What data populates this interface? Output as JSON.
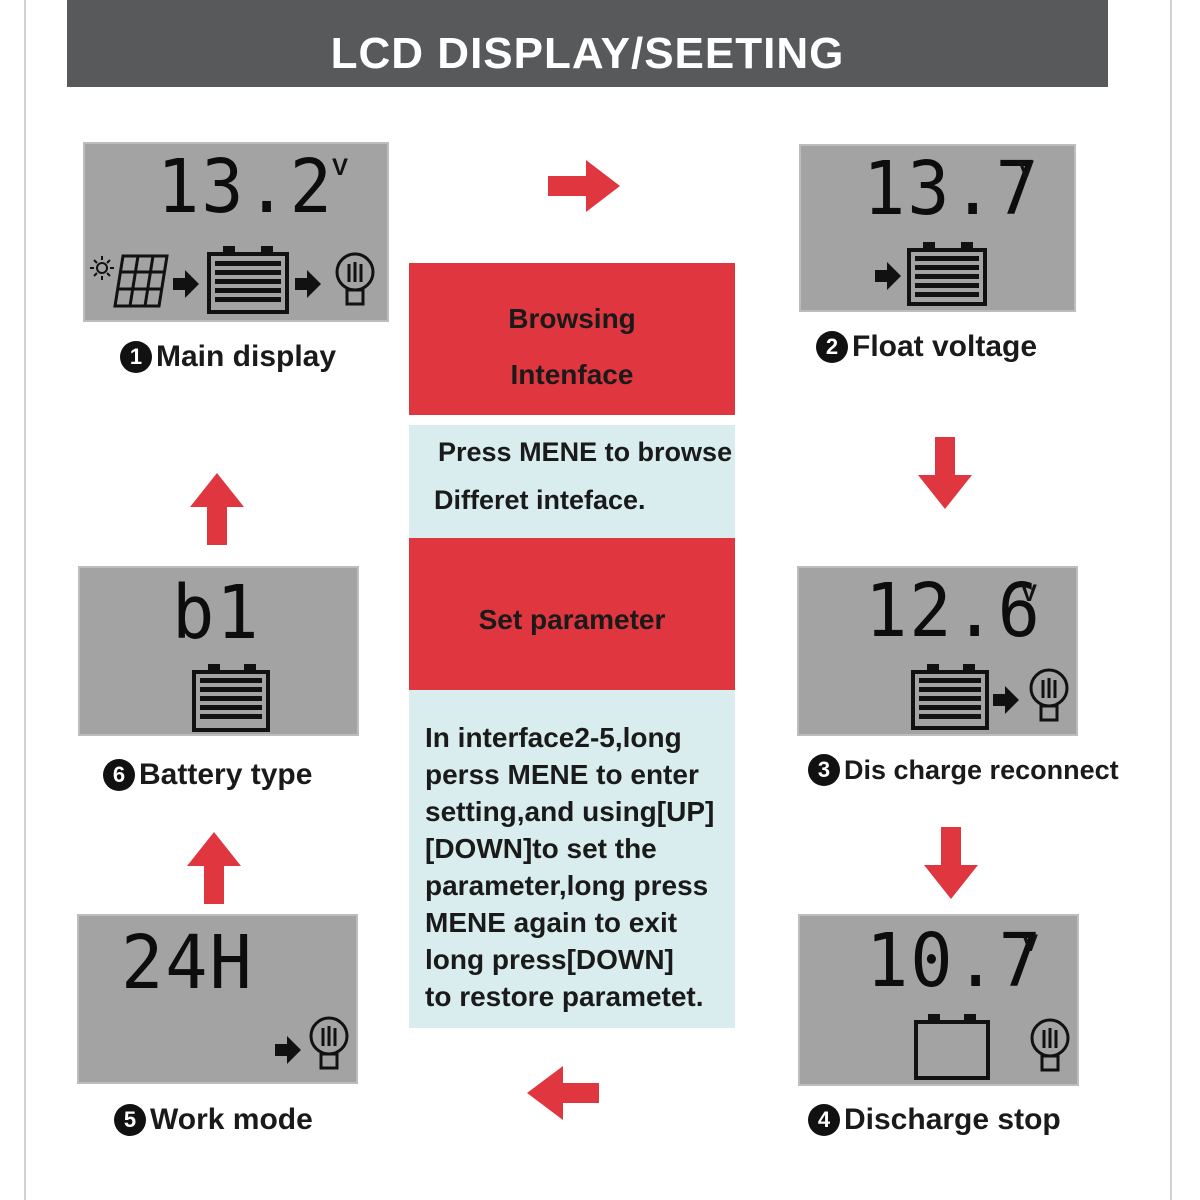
{
  "header": {
    "title": "LCD DISPLAY/SEETING"
  },
  "panels": {
    "main": {
      "reading": "13.2",
      "unit": "V",
      "label": "Main display",
      "step": "1"
    },
    "float": {
      "reading": "13.7",
      "unit": "V",
      "label": "Float voltage",
      "step": "2"
    },
    "reconnect": {
      "reading": "12.6",
      "unit": "V",
      "label": "Dis charge reconnect",
      "step": "3"
    },
    "stop": {
      "reading": "10.7",
      "unit": "V",
      "label": "Discharge stop",
      "step": "4"
    },
    "work": {
      "reading": "24H",
      "label": "Work mode",
      "step": "5"
    },
    "battery": {
      "reading": "b1",
      "label": "Battery type",
      "step": "6"
    }
  },
  "center": {
    "browse_title_1": "Browsing",
    "browse_title_2": "Intenface",
    "browse_desc_1": "Press MENE to browse",
    "browse_desc_2": "Differet inteface.",
    "set_title": "Set parameter",
    "set_desc": [
      "In interface2-5,long",
      "perss MENE to enter",
      "setting,and using[UP]",
      "[DOWN]to set the",
      "parameter,long press",
      "MENE again to exit",
      "long press[DOWN]",
      "to restore parametet."
    ]
  },
  "colors": {
    "header_bg": "#58595b",
    "lcd_bg": "#a3a3a3",
    "red": "#e0363f",
    "light_blue": "#d9ecee"
  },
  "icons": {
    "sun": "sun-icon",
    "solar_panel": "solar-panel-icon",
    "battery": "battery-icon",
    "battery_empty": "empty-battery-icon",
    "lamp": "lamp-bulb-icon",
    "flow_arrow": "flow-arrow-icon"
  }
}
